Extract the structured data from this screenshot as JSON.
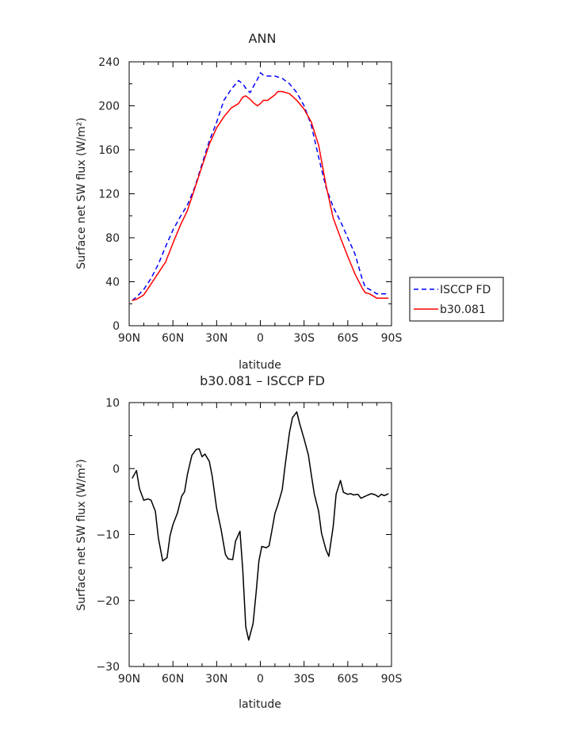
{
  "chart_data": [
    {
      "type": "line",
      "title": "ANN",
      "xlabel": "latitude",
      "ylabel": "Surface net SW flux (W/m²)",
      "xlim": [
        -90,
        90
      ],
      "ylim": [
        0,
        240
      ],
      "xticks": [
        -90,
        -60,
        -30,
        0,
        30,
        60,
        90
      ],
      "xtick_labels": [
        "90N",
        "60N",
        "30N",
        "0",
        "30S",
        "60S",
        "90S"
      ],
      "yticks": [
        0,
        40,
        80,
        120,
        160,
        200,
        240
      ],
      "ytick_labels": [
        "0",
        "40",
        "80",
        "120",
        "160",
        "200",
        "240"
      ],
      "grid": false,
      "legend": "right",
      "series": [
        {
          "name": "ISCCP FD",
          "color": "#0000ff",
          "dash": "dashed",
          "x": [
            -88,
            -85,
            -80,
            -75,
            -70,
            -65,
            -60,
            -55,
            -50,
            -45,
            -40,
            -35,
            -30,
            -25,
            -20,
            -15,
            -12,
            -10,
            -7,
            -5,
            -2,
            0,
            2,
            5,
            10,
            15,
            20,
            25,
            30,
            35,
            40,
            45,
            50,
            55,
            60,
            65,
            70,
            72,
            75,
            80,
            85,
            88
          ],
          "y": [
            23,
            26,
            33,
            43,
            56,
            72,
            87,
            99,
            110,
            126,
            147,
            168,
            185,
            205,
            215,
            223,
            220,
            216,
            212,
            217,
            224,
            230,
            228,
            227,
            227,
            225,
            220,
            212,
            200,
            182,
            153,
            126,
            108,
            95,
            80,
            65,
            42,
            35,
            33,
            29,
            29,
            29
          ]
        },
        {
          "name": "b30.081",
          "color": "#ff0000",
          "dash": "solid",
          "x": [
            -88,
            -85,
            -80,
            -75,
            -70,
            -65,
            -60,
            -55,
            -50,
            -45,
            -40,
            -35,
            -30,
            -25,
            -20,
            -15,
            -12,
            -10,
            -7,
            -5,
            -2,
            0,
            2,
            5,
            10,
            12,
            15,
            20,
            25,
            30,
            35,
            40,
            45,
            50,
            55,
            60,
            65,
            70,
            72,
            75,
            80,
            85,
            88
          ],
          "y": [
            23,
            24,
            28,
            38,
            48,
            58,
            75,
            91,
            105,
            125,
            145,
            165,
            180,
            190,
            198,
            202,
            208,
            209,
            206,
            203,
            200,
            202,
            205,
            205,
            210,
            213,
            213,
            211,
            205,
            197,
            185,
            164,
            128,
            98,
            80,
            63,
            47,
            34,
            30,
            29,
            25,
            25,
            25
          ]
        }
      ]
    },
    {
      "type": "line",
      "title": "b30.081 – ISCCP FD",
      "xlabel": "latitude",
      "ylabel": "Surface net SW flux (W/m²)",
      "xlim": [
        -90,
        90
      ],
      "ylim": [
        -30,
        10
      ],
      "xticks": [
        -90,
        -60,
        -30,
        0,
        30,
        60,
        90
      ],
      "xtick_labels": [
        "90N",
        "60N",
        "30N",
        "0",
        "30S",
        "60S",
        "90S"
      ],
      "yticks": [
        -30,
        -20,
        -10,
        0,
        10
      ],
      "ytick_labels": [
        "−30",
        "−20",
        "−10",
        "0",
        "10"
      ],
      "grid": false,
      "series": [
        {
          "color": "#000000",
          "dash": "solid",
          "x": [
            -88,
            -85,
            -83,
            -80,
            -77,
            -75,
            -72,
            -70,
            -67,
            -64,
            -62,
            -60,
            -57,
            -54,
            -52,
            -50,
            -47,
            -44,
            -42,
            -40,
            -38,
            -35,
            -33,
            -30,
            -27,
            -24,
            -22,
            -19,
            -17,
            -14,
            -12,
            -10,
            -8,
            -5,
            -3,
            -1,
            1,
            4,
            6,
            8,
            10,
            12,
            15,
            17,
            20,
            22,
            25,
            27,
            30,
            33,
            35,
            37,
            40,
            42,
            45,
            47,
            50,
            52,
            55,
            57,
            60,
            62,
            64,
            67,
            69,
            72,
            74,
            76,
            79,
            81,
            83,
            85,
            88
          ],
          "y": [
            -1.5,
            -0.3,
            -3,
            -4.8,
            -4.6,
            -4.8,
            -6.5,
            -10.5,
            -14,
            -13.5,
            -10.2,
            -8.5,
            -6.8,
            -4.2,
            -3.5,
            -0.8,
            2,
            2.9,
            3,
            1.8,
            2.2,
            1.1,
            -1.2,
            -6,
            -9.2,
            -13,
            -13.7,
            -13.8,
            -11,
            -9.5,
            -15.5,
            -24,
            -26,
            -23.5,
            -19,
            -14,
            -11.8,
            -12,
            -11.7,
            -9.3,
            -6.8,
            -5.5,
            -3.2,
            0.5,
            5.5,
            7.7,
            8.6,
            6.8,
            4.5,
            2,
            -1,
            -3.8,
            -6.5,
            -9.8,
            -12.3,
            -13.3,
            -8.8,
            -3.9,
            -1.8,
            -3.6,
            -3.9,
            -3.8,
            -4,
            -3.9,
            -4.5,
            -4.2,
            -4,
            -3.8,
            -4,
            -4.3,
            -3.9,
            -4.1,
            -3.8
          ]
        }
      ]
    }
  ]
}
